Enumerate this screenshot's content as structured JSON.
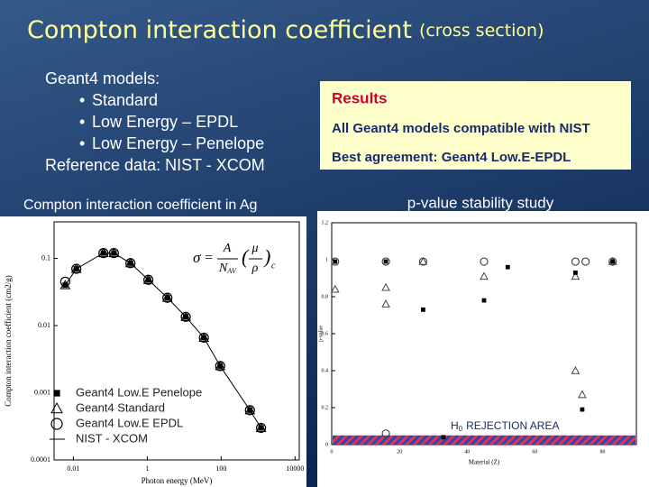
{
  "slide": {
    "title": "Compton interaction coefficient",
    "title_sub": "(cross section)",
    "models_heading": "Geant4 models:",
    "models": [
      "Standard",
      "Low Energy – EPDL",
      "Low Energy – Penelope"
    ],
    "reference": "Reference data: NIST - XCOM",
    "results": {
      "title": "Results",
      "lines": [
        "All Geant4 models compatible with NIST",
        "Best agreement: Geant4 Low.E-EPDL"
      ]
    }
  },
  "chart_data": [
    {
      "type": "scatter",
      "title": "Compton interaction coefficient in Ag",
      "xlabel": "Photon energy (MeV)",
      "ylabel": "Compton interaction coefficient (cm2/g)",
      "xscale": "log",
      "yscale": "log",
      "xlim": [
        0.003,
        13000
      ],
      "ylim": [
        0.0001,
        0.35
      ],
      "xticks": [
        0.01,
        1,
        100,
        10000
      ],
      "yticks": [
        0.0001,
        0.001,
        0.01,
        0.1
      ],
      "x": [
        0.006,
        0.012,
        0.065,
        0.125,
        0.35,
        1.07,
        3.5,
        11,
        34,
        94,
        600,
        1200
      ],
      "series": [
        {
          "name": "Geant4 Low.E Penelope",
          "marker": "square",
          "color": "#000000",
          "values": [
            0.04,
            0.07,
            0.12,
            0.12,
            0.085,
            0.048,
            0.026,
            0.0135,
            0.0066,
            0.0025,
            0.00055,
            0.0003
          ]
        },
        {
          "name": "Geant4 Standard",
          "marker": "triangle",
          "color": "#000000",
          "values": [
            0.04,
            0.07,
            0.12,
            0.12,
            0.085,
            0.048,
            0.026,
            0.0135,
            0.0066,
            0.0025,
            0.00055,
            0.0003
          ]
        },
        {
          "name": "Geant4 Low.E EPDL",
          "marker": "circle",
          "color": "#000000",
          "values": [
            0.045,
            0.07,
            0.12,
            0.12,
            0.085,
            0.048,
            0.026,
            0.0135,
            0.0066,
            0.0025,
            0.00055,
            0.0003
          ]
        },
        {
          "name": "NIST - XCOM",
          "marker": "line",
          "color": "#000000",
          "values": [
            0.04,
            0.07,
            0.12,
            0.12,
            0.085,
            0.048,
            0.026,
            0.0135,
            0.0066,
            0.0025,
            0.00055,
            0.0003
          ]
        }
      ],
      "formula": {
        "sigma": "σ",
        "equals": "=",
        "numerator": "A",
        "denominator": "N",
        "denominator_sub": "AV",
        "open": "(",
        "mu": "μ",
        "rho": "ρ",
        "close": ")",
        "sub": "c"
      }
    },
    {
      "type": "scatter",
      "title": "p-value stability study",
      "xlabel": "Material (Z)",
      "ylabel": "p-value",
      "xlim": [
        0,
        90
      ],
      "ylim": [
        0,
        1.2
      ],
      "xticks": [
        0,
        20,
        40,
        60,
        80
      ],
      "yticks": [
        0,
        0.2,
        0.4,
        0.6,
        0.8,
        1,
        1.2
      ],
      "series": [
        {
          "marker": "circle",
          "color": "#444444",
          "x": [
            1,
            16,
            16,
            27,
            45,
            72,
            75,
            83
          ],
          "values": [
            0.99,
            0.99,
            0.06,
            0.99,
            0.99,
            0.99,
            0.99,
            0.99
          ]
        },
        {
          "marker": "triangle",
          "color": "#444444",
          "x": [
            1,
            16,
            16,
            27,
            45,
            72,
            72,
            74,
            83
          ],
          "values": [
            0.84,
            0.85,
            0.76,
            0.99,
            0.91,
            0.91,
            0.4,
            0.27,
            0.99
          ]
        },
        {
          "marker": "square",
          "color": "#000000",
          "x": [
            1,
            16,
            27,
            33,
            45,
            52,
            72,
            74,
            83
          ],
          "values": [
            0.99,
            0.99,
            0.73,
            0.04,
            0.78,
            0.96,
            0.93,
            0.19,
            0.99
          ]
        }
      ],
      "rejection_threshold": 0.05,
      "rejection_label": {
        "main": "H",
        "sub": "0",
        "rest": "REJECTION AREA"
      }
    }
  ]
}
